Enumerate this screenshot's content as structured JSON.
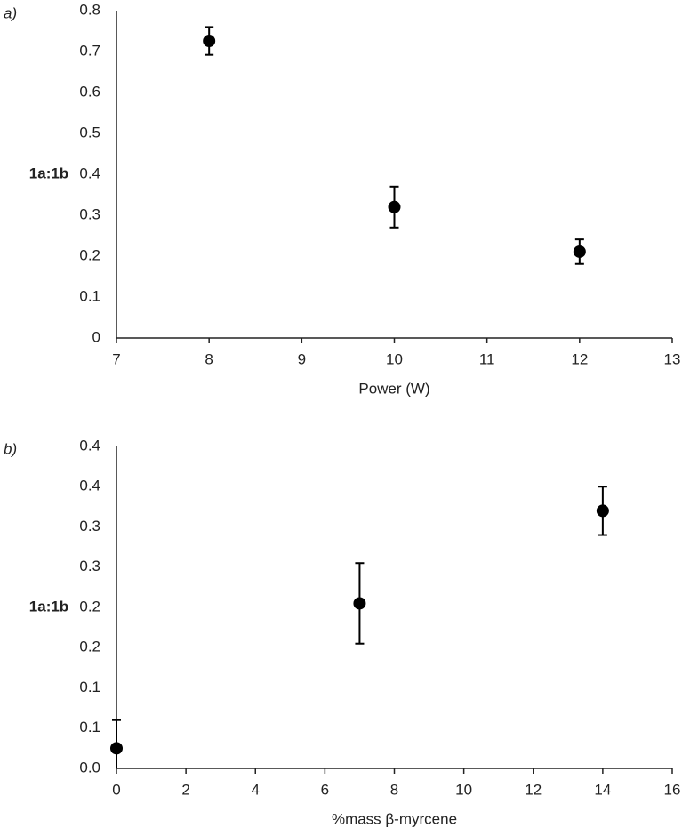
{
  "chart_data": [
    {
      "type": "scatter",
      "panel_label": "a)",
      "ylabel": "1a:1b",
      "xlabel": "Power (W)",
      "x": [
        8,
        10,
        12
      ],
      "values": [
        0.726,
        0.32,
        0.211
      ],
      "errors": [
        0.034,
        0.05,
        0.03
      ],
      "color": "#000000",
      "xlim": [
        7,
        13
      ],
      "xticks": [
        7,
        8,
        9,
        10,
        11,
        12,
        13
      ],
      "ylim": [
        0,
        0.8
      ],
      "yticks": [
        0,
        0.1,
        0.2,
        0.3,
        0.4,
        0.5,
        0.6,
        0.7,
        0.8
      ]
    },
    {
      "type": "scatter",
      "panel_label": "b)",
      "ylabel": "1a:1b",
      "xlabel": "%mass β-myrcene",
      "x": [
        0,
        7,
        14
      ],
      "values": [
        0.025,
        0.205,
        0.32
      ],
      "errors": [
        0.035,
        0.05,
        0.03
      ],
      "color": "#000000",
      "xlim": [
        0,
        16
      ],
      "xticks": [
        0,
        2,
        4,
        6,
        8,
        10,
        12,
        14,
        16
      ],
      "ylim": [
        0,
        0.4
      ],
      "yticks": [
        {
          "value": 0,
          "label": "0.0"
        },
        {
          "value": 0.05,
          "label": "0.1"
        },
        0.1,
        {
          "value": 0.15,
          "label": "0.2"
        },
        0.2,
        {
          "value": 0.25,
          "label": "0.3"
        },
        0.3,
        {
          "value": 0.35,
          "label": "0.4"
        },
        0.4
      ]
    }
  ]
}
